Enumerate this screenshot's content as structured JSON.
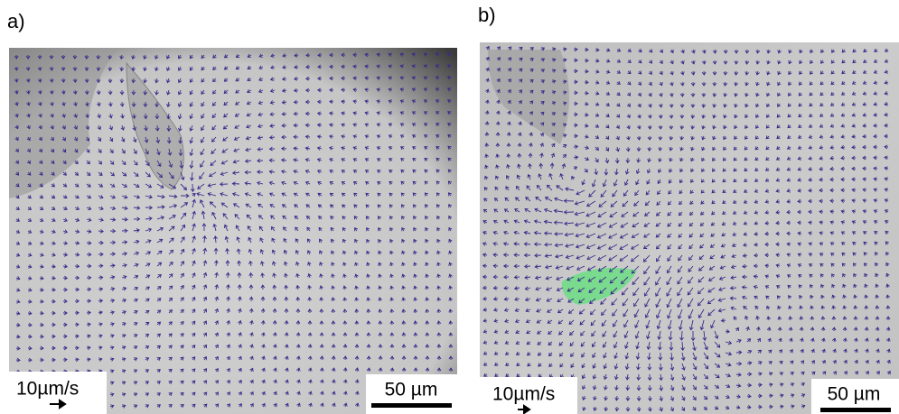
{
  "panels": [
    {
      "label": "a)",
      "velocity_scale": "10µm/s",
      "scale_bar": "50 µm"
    },
    {
      "label": "b)",
      "velocity_scale": "10µm/s",
      "scale_bar": "50 µm"
    }
  ]
}
